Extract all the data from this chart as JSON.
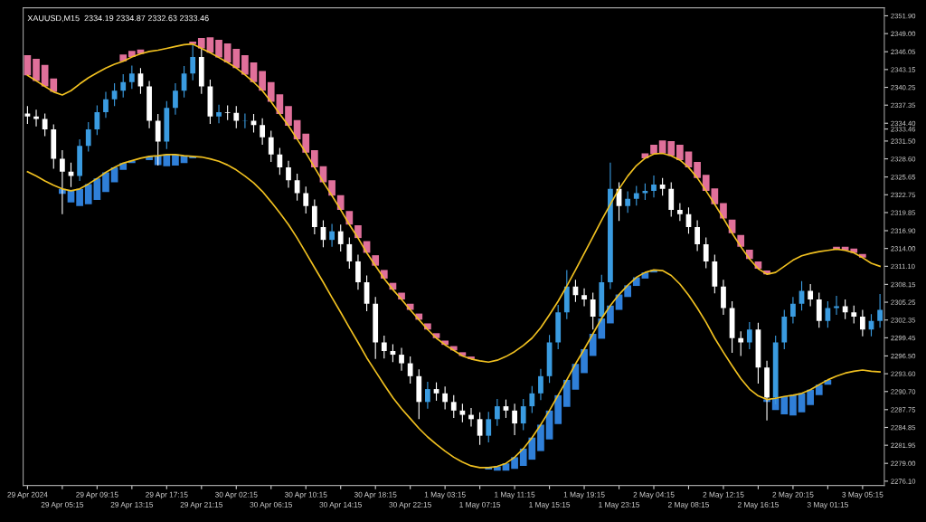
{
  "chart_data": {
    "type": "candlestick",
    "title": "XAUUSD,M15  2334.19 2334.87 2332.63 2333.46",
    "categories": [
      "29 Apr 2024",
      null,
      null,
      null,
      "29 Apr 05:15",
      null,
      null,
      null,
      "29 Apr 09:15",
      null,
      null,
      null,
      "29 Apr 13:15",
      null,
      null,
      null,
      "29 Apr 17:15",
      null,
      null,
      null,
      "29 Apr 21:15",
      null,
      null,
      null,
      "30 Apr 02:15",
      null,
      null,
      null,
      "30 Apr 06:15",
      null,
      null,
      null,
      "30 Apr 10:15",
      null,
      null,
      null,
      "30 Apr 14:15",
      null,
      null,
      null,
      "30 Apr 18:15",
      null,
      null,
      null,
      "30 Apr 22:15",
      null,
      null,
      null,
      "1 May 03:15",
      null,
      null,
      null,
      "1 May 07:15",
      null,
      null,
      null,
      "1 May 11:15",
      null,
      null,
      null,
      "1 May 15:15",
      null,
      null,
      null,
      "1 May 19:15",
      null,
      null,
      null,
      "1 May 23:15",
      null,
      null,
      null,
      "2 May 04:15",
      null,
      null,
      null,
      "2 May 08:15",
      null,
      null,
      null,
      "2 May 12:15",
      null,
      null,
      null,
      "2 May 16:15",
      null,
      null,
      null,
      "2 May 20:15",
      null,
      null,
      null,
      "3 May 01:15",
      null,
      null,
      null,
      "3 May 05:15",
      null,
      null
    ],
    "colors": [
      "#ffffff",
      "#ffffff",
      "#ffffff",
      "#ffffff",
      "#ffffff",
      "#ffffff",
      "#3a9be0",
      "#3a9be0",
      "#3a9be0",
      "#3a9be0",
      "#3a9be0",
      "#3a9be0",
      "#3a9be0",
      "#ffffff",
      "#ffffff",
      "#ffffff",
      "#3a9be0",
      "#3a9be0",
      "#3a9be0",
      "#3a9be0",
      "#ffffff",
      "#ffffff",
      "#3a9be0",
      "#ffffff",
      "#ffffff",
      "#3a9be0",
      "#ffffff",
      "#ffffff",
      "#ffffff",
      "#ffffff",
      "#ffffff",
      "#ffffff",
      "#ffffff",
      "#ffffff",
      "#ffffff",
      "#3a9be0",
      "#ffffff",
      "#ffffff",
      "#ffffff",
      "#ffffff",
      "#ffffff",
      "#ffffff",
      "#ffffff",
      "#ffffff",
      "#ffffff",
      "#ffffff",
      "#3a9be0",
      "#ffffff",
      "#ffffff",
      "#ffffff",
      "#ffffff",
      "#ffffff",
      "#ffffff",
      "#3a9be0",
      "#3a9be0",
      "#ffffff",
      "#ffffff",
      "#3a9be0",
      "#3a9be0",
      "#3a9be0",
      "#3a9be0",
      "#3a9be0",
      "#3a9be0",
      "#ffffff",
      "#ffffff",
      "#ffffff",
      "#3a9be0",
      "#3a9be0",
      "#ffffff",
      "#3a9be0",
      "#3a9be0",
      "#3a9be0",
      "#3a9be0",
      "#ffffff",
      "#ffffff",
      "#ffffff",
      "#ffffff",
      "#ffffff",
      "#ffffff",
      "#ffffff",
      "#ffffff",
      "#ffffff",
      "#ffffff",
      "#3a9be0",
      "#ffffff",
      "#ffffff",
      "#3a9be0",
      "#3a9be0",
      "#3a9be0",
      "#3a9be0",
      "#ffffff",
      "#ffffff",
      "#3a9be0",
      "#3a9be0",
      "#ffffff",
      "#ffffff",
      "#ffffff",
      "#3a9be0",
      "#3a9be0"
    ],
    "ohlc": [
      [
        2336.0,
        2337.2,
        2334.3,
        2335.5
      ],
      [
        2335.5,
        2336.6,
        2333.9,
        2335.1
      ],
      [
        2335.1,
        2336.0,
        2332.3,
        2333.4
      ],
      [
        2333.4,
        2334.2,
        2327.0,
        2328.6
      ],
      [
        2328.6,
        2330.0,
        2319.6,
        2326.5
      ],
      [
        2326.5,
        2328.0,
        2324.0,
        2325.8
      ],
      [
        2325.8,
        2331.8,
        2325.0,
        2330.7
      ],
      [
        2330.7,
        2334.6,
        2329.8,
        2333.4
      ],
      [
        2333.4,
        2337.3,
        2332.5,
        2336.2
      ],
      [
        2336.2,
        2339.5,
        2335.3,
        2338.3
      ],
      [
        2338.3,
        2340.9,
        2337.2,
        2339.7
      ],
      [
        2339.7,
        2342.4,
        2338.6,
        2341.1
      ],
      [
        2341.1,
        2343.8,
        2340.0,
        2342.5
      ],
      [
        2342.5,
        2343.4,
        2339.2,
        2340.4
      ],
      [
        2340.4,
        2341.3,
        2333.6,
        2334.8
      ],
      [
        2334.8,
        2335.9,
        2327.5,
        2331.4
      ],
      [
        2331.4,
        2338.0,
        2330.2,
        2336.9
      ],
      [
        2336.9,
        2340.9,
        2335.8,
        2339.7
      ],
      [
        2339.7,
        2343.7,
        2338.6,
        2342.5
      ],
      [
        2342.5,
        2347.3,
        2341.4,
        2345.2
      ],
      [
        2345.2,
        2346.6,
        2339.2,
        2340.4
      ],
      [
        2340.4,
        2341.5,
        2334.3,
        2335.5
      ],
      [
        2335.5,
        2337.4,
        2334.4,
        2336.2
      ],
      [
        2336.2,
        2337.3,
        2334.9,
        2336.1
      ],
      [
        2336.1,
        2337.2,
        2333.6,
        2334.8
      ],
      [
        2334.8,
        2336.0,
        2333.6,
        2334.8
      ],
      [
        2334.8,
        2335.9,
        2332.9,
        2334.1
      ],
      [
        2334.1,
        2335.2,
        2330.9,
        2332.1
      ],
      [
        2332.1,
        2333.2,
        2328.1,
        2329.3
      ],
      [
        2329.3,
        2330.4,
        2326.0,
        2327.2
      ],
      [
        2327.2,
        2328.3,
        2323.9,
        2325.1
      ],
      [
        2325.1,
        2326.2,
        2321.8,
        2323.0
      ],
      [
        2323.0,
        2324.1,
        2319.7,
        2320.9
      ],
      [
        2320.9,
        2322.0,
        2316.3,
        2317.5
      ],
      [
        2317.5,
        2318.6,
        2314.2,
        2315.4
      ],
      [
        2315.4,
        2318.0,
        2314.3,
        2316.8
      ],
      [
        2316.8,
        2317.9,
        2313.5,
        2314.7
      ],
      [
        2314.7,
        2315.8,
        2310.7,
        2311.9
      ],
      [
        2311.9,
        2313.0,
        2307.3,
        2308.5
      ],
      [
        2308.5,
        2309.6,
        2303.8,
        2305.0
      ],
      [
        2305.0,
        2306.1,
        2296.0,
        2298.7
      ],
      [
        2298.7,
        2299.8,
        2296.1,
        2297.3
      ],
      [
        2297.3,
        2298.4,
        2295.5,
        2296.7
      ],
      [
        2296.7,
        2297.8,
        2294.1,
        2295.3
      ],
      [
        2295.3,
        2296.4,
        2292.0,
        2293.2
      ],
      [
        2293.2,
        2294.3,
        2286.2,
        2289.0
      ],
      [
        2289.0,
        2292.3,
        2287.9,
        2291.1
      ],
      [
        2291.1,
        2292.2,
        2289.2,
        2290.4
      ],
      [
        2290.4,
        2291.5,
        2287.8,
        2289.0
      ],
      [
        2289.0,
        2290.1,
        2286.4,
        2287.6
      ],
      [
        2287.6,
        2288.7,
        2285.7,
        2286.9
      ],
      [
        2286.9,
        2288.0,
        2285.0,
        2286.2
      ],
      [
        2286.2,
        2287.3,
        2282.0,
        2283.5
      ],
      [
        2283.5,
        2287.4,
        2282.4,
        2286.2
      ],
      [
        2286.2,
        2289.5,
        2285.1,
        2288.3
      ],
      [
        2288.3,
        2289.4,
        2286.4,
        2287.6
      ],
      [
        2287.6,
        2288.7,
        2283.6,
        2285.5
      ],
      [
        2285.5,
        2289.5,
        2284.4,
        2288.3
      ],
      [
        2288.3,
        2291.6,
        2287.2,
        2290.4
      ],
      [
        2290.4,
        2294.4,
        2289.3,
        2293.2
      ],
      [
        2293.2,
        2299.9,
        2292.1,
        2298.7
      ],
      [
        2298.7,
        2304.8,
        2297.6,
        2303.6
      ],
      [
        2303.6,
        2310.5,
        2302.5,
        2307.8
      ],
      [
        2307.8,
        2308.9,
        2305.3,
        2306.4
      ],
      [
        2306.4,
        2307.5,
        2304.6,
        2305.7
      ],
      [
        2305.7,
        2306.8,
        2300.8,
        2302.9
      ],
      [
        2302.9,
        2309.7,
        2301.8,
        2308.5
      ],
      [
        2308.5,
        2328.0,
        2307.4,
        2323.7
      ],
      [
        2323.7,
        2324.8,
        2318.5,
        2320.9
      ],
      [
        2320.9,
        2323.3,
        2319.8,
        2322.1
      ],
      [
        2322.1,
        2324.2,
        2321.0,
        2323.0
      ],
      [
        2323.0,
        2324.6,
        2321.9,
        2323.4
      ],
      [
        2323.4,
        2325.9,
        2322.3,
        2324.4
      ],
      [
        2324.4,
        2325.5,
        2322.6,
        2323.7
      ],
      [
        2323.7,
        2324.8,
        2319.2,
        2320.3
      ],
      [
        2320.3,
        2321.4,
        2318.5,
        2319.6
      ],
      [
        2319.6,
        2320.7,
        2316.4,
        2317.5
      ],
      [
        2317.5,
        2318.6,
        2313.6,
        2314.7
      ],
      [
        2314.7,
        2315.8,
        2310.8,
        2311.9
      ],
      [
        2311.9,
        2313.0,
        2306.7,
        2307.8
      ],
      [
        2307.8,
        2308.9,
        2303.2,
        2304.3
      ],
      [
        2304.3,
        2305.4,
        2297.0,
        2299.4
      ],
      [
        2299.4,
        2300.5,
        2296.5,
        2298.7
      ],
      [
        2298.7,
        2302.0,
        2297.6,
        2300.8
      ],
      [
        2300.8,
        2301.9,
        2292.0,
        2294.6
      ],
      [
        2294.6,
        2295.7,
        2286.0,
        2289.7
      ],
      [
        2289.7,
        2299.8,
        2288.6,
        2298.7
      ],
      [
        2298.7,
        2304.0,
        2297.6,
        2302.9
      ],
      [
        2302.9,
        2306.1,
        2301.8,
        2305.0
      ],
      [
        2305.0,
        2308.7,
        2303.9,
        2307.1
      ],
      [
        2307.1,
        2308.2,
        2304.6,
        2305.7
      ],
      [
        2305.7,
        2306.8,
        2301.1,
        2302.2
      ],
      [
        2302.2,
        2305.4,
        2301.1,
        2304.3
      ],
      [
        2304.3,
        2306.3,
        2303.2,
        2304.6
      ],
      [
        2304.6,
        2305.7,
        2302.5,
        2303.6
      ],
      [
        2303.6,
        2304.7,
        2301.8,
        2302.9
      ],
      [
        2302.9,
        2304.0,
        2299.7,
        2300.8
      ],
      [
        2300.8,
        2303.3,
        2299.7,
        2302.2
      ],
      [
        2302.2,
        2306.6,
        2301.1,
        2304.0
      ]
    ],
    "series": [
      {
        "type": "line",
        "color": "#f0c020",
        "values": [
          2342.2,
          2341.3,
          2340.4,
          2339.5,
          2339.0,
          2339.7,
          2340.8,
          2341.8,
          2342.6,
          2343.4,
          2344.0,
          2344.5,
          2345.2,
          2345.7,
          2346.1,
          2346.3,
          2346.6,
          2346.9,
          2347.2,
          2347.3,
          2346.6,
          2345.9,
          2345.1,
          2344.3,
          2343.4,
          2342.3,
          2341.1,
          2339.7,
          2337.9,
          2335.9,
          2334.0,
          2331.8,
          2329.6,
          2327.2,
          2324.8,
          2322.6,
          2320.3,
          2317.9,
          2315.7,
          2313.3,
          2311.2,
          2309.1,
          2307.3,
          2305.7,
          2304.0,
          2302.4,
          2300.8,
          2299.4,
          2298.3,
          2297.4,
          2296.5,
          2296.0,
          2295.7,
          2295.5,
          2295.8,
          2296.4,
          2297.2,
          2298.2,
          2299.4,
          2301.1,
          2303.2,
          2305.4,
          2307.9,
          2310.5,
          2313.2,
          2315.9,
          2318.6,
          2321.2,
          2323.7,
          2325.8,
          2327.5,
          2328.7,
          2329.4,
          2329.5,
          2329.1,
          2328.4,
          2327.2,
          2325.5,
          2323.4,
          2321.2,
          2318.9,
          2316.5,
          2314.3,
          2312.3,
          2310.7,
          2309.8,
          2310.1,
          2311.1,
          2312.1,
          2312.8,
          2313.2,
          2313.5,
          2313.7,
          2313.9,
          2313.7,
          2313.3,
          2312.5,
          2311.6,
          2311.1
        ]
      },
      {
        "type": "line",
        "color": "#f0c020",
        "values": [
          2326.5,
          2325.8,
          2325.0,
          2324.3,
          2323.7,
          2323.4,
          2323.7,
          2324.5,
          2325.4,
          2326.4,
          2327.2,
          2327.9,
          2328.3,
          2328.7,
          2329.0,
          2329.1,
          2329.3,
          2329.3,
          2329.1,
          2329.0,
          2328.9,
          2328.6,
          2328.2,
          2327.6,
          2326.8,
          2325.8,
          2324.7,
          2323.3,
          2321.6,
          2319.8,
          2317.9,
          2315.7,
          2313.3,
          2310.9,
          2308.5,
          2306.0,
          2303.6,
          2301.1,
          2298.7,
          2296.2,
          2294.0,
          2291.8,
          2289.7,
          2287.9,
          2286.3,
          2284.7,
          2283.3,
          2282.1,
          2281.0,
          2280.0,
          2279.2,
          2278.6,
          2278.3,
          2278.3,
          2278.5,
          2279.0,
          2280.0,
          2281.4,
          2283.2,
          2285.3,
          2287.6,
          2290.1,
          2292.6,
          2295.2,
          2297.6,
          2300.1,
          2302.6,
          2304.7,
          2306.5,
          2308.0,
          2309.3,
          2310.1,
          2310.5,
          2310.4,
          2309.6,
          2308.2,
          2306.4,
          2304.3,
          2302.0,
          2299.4,
          2297.1,
          2294.9,
          2292.8,
          2291.1,
          2290.0,
          2289.4,
          2289.6,
          2289.9,
          2290.1,
          2290.4,
          2291.0,
          2291.8,
          2292.6,
          2293.2,
          2293.7,
          2294.0,
          2294.2,
          2294.0,
          2293.9
        ]
      },
      {
        "type": "bar",
        "color": "#e0709a",
        "base": [
          2342.2,
          2341.3,
          2340.4,
          2339.5,
          null,
          null,
          null,
          null,
          null,
          null,
          null,
          2344.5,
          2345.2,
          2345.7,
          null,
          null,
          null,
          null,
          null,
          2347.3,
          2346.6,
          2345.9,
          2345.1,
          2344.3,
          2343.4,
          2342.3,
          2341.1,
          2339.7,
          2337.9,
          2335.9,
          2334.0,
          2331.8,
          2329.6,
          2327.2,
          2324.8,
          2322.6,
          2320.3,
          2317.9,
          2315.7,
          2313.3,
          2311.2,
          2309.1,
          2307.3,
          2305.7,
          2304.0,
          2302.4,
          2300.8,
          2299.4,
          2298.3,
          2297.4,
          2296.5,
          2296.0,
          null,
          null,
          null,
          null,
          null,
          null,
          null,
          null,
          null,
          null,
          null,
          null,
          null,
          null,
          null,
          null,
          null,
          null,
          null,
          2328.7,
          2329.4,
          2329.5,
          2329.1,
          2328.4,
          2327.2,
          2325.5,
          2323.4,
          2321.2,
          2318.9,
          2316.5,
          2314.3,
          2312.3,
          2310.7,
          2309.8,
          null,
          null,
          null,
          null,
          null,
          null,
          null,
          2313.9,
          2313.7,
          2313.3,
          2312.5,
          null,
          null
        ],
        "values": [
          3.3,
          3.6,
          3.5,
          2.2,
          null,
          null,
          null,
          null,
          null,
          null,
          null,
          1.1,
          1.0,
          0.7,
          null,
          null,
          null,
          null,
          null,
          0.4,
          1.7,
          2.5,
          2.9,
          3.1,
          3.1,
          3.2,
          3.2,
          3.2,
          3.2,
          3.2,
          3.2,
          3.1,
          3.1,
          2.8,
          2.6,
          2.5,
          2.4,
          2.2,
          2.1,
          1.9,
          1.7,
          1.4,
          1.1,
          1.1,
          1.0,
          1.0,
          1.0,
          0.8,
          0.7,
          0.7,
          0.6,
          0.4,
          null,
          null,
          null,
          null,
          null,
          null,
          null,
          null,
          null,
          null,
          null,
          null,
          null,
          null,
          null,
          null,
          null,
          null,
          null,
          0.8,
          1.5,
          2.1,
          2.4,
          2.5,
          2.6,
          2.6,
          2.6,
          2.6,
          2.5,
          2.2,
          1.9,
          1.5,
          1.2,
          0.6,
          null,
          null,
          null,
          null,
          null,
          null,
          null,
          0.4,
          0.6,
          0.7,
          0.6,
          null,
          null
        ]
      },
      {
        "type": "bar",
        "color": "#2f7fd8",
        "base": [
          null,
          null,
          null,
          null,
          2323.7,
          2323.4,
          2323.7,
          2324.5,
          2325.4,
          2326.4,
          2327.2,
          2327.9,
          2328.3,
          null,
          2329.0,
          2329.1,
          2329.3,
          2329.3,
          2329.1,
          2329.0,
          null,
          null,
          null,
          null,
          null,
          null,
          null,
          null,
          null,
          null,
          null,
          null,
          null,
          null,
          null,
          null,
          null,
          null,
          null,
          null,
          null,
          null,
          null,
          null,
          null,
          null,
          null,
          null,
          null,
          null,
          null,
          null,
          null,
          2278.3,
          2278.5,
          2279.0,
          2280.0,
          2281.4,
          2283.2,
          2285.3,
          2287.6,
          2290.1,
          2292.6,
          2295.2,
          2297.6,
          2300.1,
          2302.6,
          2304.7,
          2306.5,
          2308.0,
          2309.3,
          2310.1,
          2310.5,
          null,
          null,
          null,
          null,
          null,
          null,
          null,
          null,
          null,
          null,
          null,
          null,
          2289.4,
          2289.6,
          2289.9,
          2290.1,
          2290.4,
          2291.0,
          2291.8,
          2292.6,
          null,
          null,
          null,
          null,
          null,
          null
        ],
        "values": [
          null,
          null,
          null,
          null,
          -0.8,
          -1.9,
          -2.8,
          -3.3,
          -3.5,
          -3.2,
          -2.4,
          -1.1,
          -0.4,
          null,
          -0.6,
          -1.5,
          -1.9,
          -1.8,
          -1.2,
          -0.3,
          null,
          null,
          null,
          null,
          null,
          null,
          null,
          null,
          null,
          null,
          null,
          null,
          null,
          null,
          null,
          null,
          null,
          null,
          null,
          null,
          null,
          null,
          null,
          null,
          null,
          null,
          null,
          null,
          null,
          null,
          null,
          null,
          null,
          -0.3,
          -0.7,
          -1.2,
          -1.9,
          -2.8,
          -3.6,
          -4.3,
          -4.7,
          -4.7,
          -4.4,
          -4.2,
          -3.9,
          -3.6,
          -3.3,
          -2.9,
          -2.5,
          -1.9,
          -1.4,
          -1.0,
          -0.4,
          null,
          null,
          null,
          null,
          null,
          null,
          null,
          null,
          null,
          null,
          null,
          null,
          -0.4,
          -1.9,
          -2.9,
          -3.3,
          -3.1,
          -2.5,
          -1.7,
          -0.8,
          null,
          null,
          null,
          null,
          null,
          null
        ]
      }
    ],
    "ylim": [
      2275.4,
      2353.2
    ],
    "yticks": [
      {
        "value": 2351.9,
        "label": "2351.90"
      },
      {
        "value": 2349,
        "label": "2349.00"
      },
      {
        "value": 2346.05,
        "label": "2346.05"
      },
      {
        "value": 2343.15,
        "label": "2343.15"
      },
      {
        "value": 2340.25,
        "label": "2340.25"
      },
      {
        "value": 2337.35,
        "label": "2337.35"
      },
      {
        "value": 2334.4,
        "label": "2334.40"
      },
      {
        "value": 2333.46,
        "label": "2333.46"
      },
      {
        "value": 2331.5,
        "label": "2331.50"
      },
      {
        "value": 2328.6,
        "label": "2328.60"
      },
      {
        "value": 2325.65,
        "label": "2325.65"
      },
      {
        "value": 2322.75,
        "label": "2322.75"
      },
      {
        "value": 2319.85,
        "label": "2319.85"
      },
      {
        "value": 2316.9,
        "label": "2316.90"
      },
      {
        "value": 2314,
        "label": "2314.00"
      },
      {
        "value": 2311.1,
        "label": "2311.10"
      },
      {
        "value": 2308.15,
        "label": "2308.15"
      },
      {
        "value": 2305.25,
        "label": "2305.25"
      },
      {
        "value": 2302.35,
        "label": "2302.35"
      },
      {
        "value": 2299.45,
        "label": "2299.45"
      },
      {
        "value": 2296.5,
        "label": "2296.50"
      },
      {
        "value": 2293.6,
        "label": "2293.60"
      },
      {
        "value": 2290.7,
        "label": "2290.70"
      },
      {
        "value": 2287.75,
        "label": "2287.75"
      },
      {
        "value": 2284.85,
        "label": "2284.85"
      },
      {
        "value": 2281.95,
        "label": "2281.95"
      },
      {
        "value": 2279,
        "label": "2279.00"
      },
      {
        "value": 2276.1,
        "label": "2276.10"
      }
    ],
    "grid": false
  }
}
